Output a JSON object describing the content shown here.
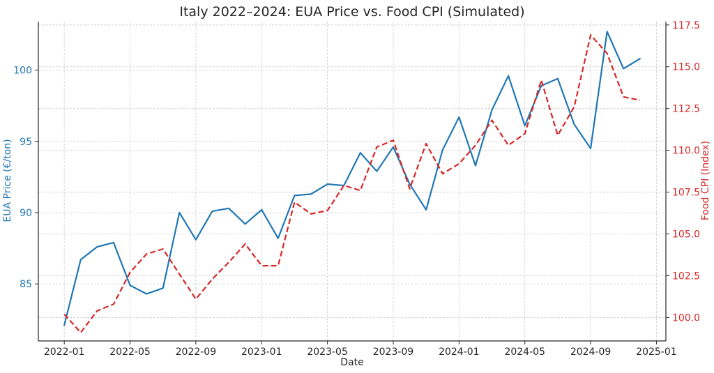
{
  "chart_data": {
    "type": "line",
    "title": "Italy 2022–2024: EUA Price vs. Food CPI (Simulated)",
    "xlabel": "Date",
    "ylabel_left": "EUA Price (€/ton)",
    "ylabel_right": "Food CPI (Index)",
    "x": [
      "2022-01",
      "2022-02",
      "2022-03",
      "2022-04",
      "2022-05",
      "2022-06",
      "2022-07",
      "2022-08",
      "2022-09",
      "2022-10",
      "2022-11",
      "2022-12",
      "2023-01",
      "2023-02",
      "2023-03",
      "2023-04",
      "2023-05",
      "2023-06",
      "2023-07",
      "2023-08",
      "2023-09",
      "2023-10",
      "2023-11",
      "2023-12",
      "2024-01",
      "2024-02",
      "2024-03",
      "2024-04",
      "2024-05",
      "2024-06",
      "2024-07",
      "2024-08",
      "2024-09",
      "2024-10",
      "2024-11",
      "2024-12"
    ],
    "x_ticks": [
      "2022-01",
      "2022-05",
      "2022-09",
      "2023-01",
      "2023-05",
      "2023-09",
      "2024-01",
      "2024-05",
      "2024-09",
      "2025-01"
    ],
    "ylim_left": [
      81,
      103.4
    ],
    "yticks_left": [
      85,
      90,
      95,
      100
    ],
    "ylim_right": [
      98.6,
      117.7
    ],
    "yticks_right": [
      100.0,
      102.5,
      105.0,
      107.5,
      110.0,
      112.5,
      115.0,
      117.5
    ],
    "grid": true,
    "series": [
      {
        "name": "EUA Price",
        "axis": "left",
        "color": "#1f77b4",
        "style": "solid",
        "values": [
          82.1,
          86.7,
          87.6,
          87.9,
          84.9,
          84.3,
          84.7,
          90.0,
          88.1,
          90.1,
          90.3,
          89.2,
          90.2,
          88.2,
          91.2,
          91.3,
          92.0,
          91.9,
          94.2,
          92.9,
          94.6,
          92.0,
          90.2,
          94.4,
          96.7,
          93.3,
          97.2,
          99.6,
          96.1,
          98.9,
          99.4,
          96.2,
          94.5,
          102.7,
          100.1,
          100.8
        ]
      },
      {
        "name": "Food CPI",
        "axis": "right",
        "color": "#d62728",
        "style": "dashed",
        "values": [
          100.2,
          99.1,
          100.4,
          100.8,
          102.7,
          103.8,
          104.1,
          102.6,
          101.1,
          102.3,
          103.3,
          104.4,
          103.1,
          103.1,
          106.9,
          106.2,
          106.4,
          107.9,
          107.6,
          110.2,
          110.6,
          107.7,
          110.4,
          108.6,
          109.2,
          110.3,
          111.8,
          110.3,
          111.0,
          114.2,
          110.9,
          112.6,
          116.9,
          115.8,
          113.2,
          113.0
        ]
      }
    ]
  }
}
